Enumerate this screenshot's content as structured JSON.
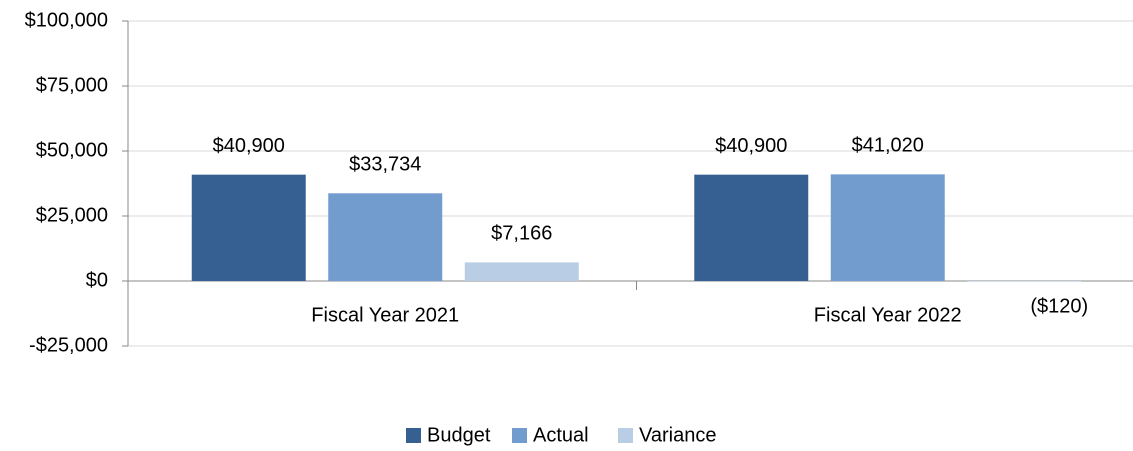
{
  "chart_data": {
    "type": "bar",
    "categories": [
      "Fiscal Year 2021",
      "Fiscal Year 2022"
    ],
    "series": [
      {
        "name": "Budget",
        "color": "#376092",
        "values": [
          40900,
          40900
        ],
        "value_labels": [
          "$40,900",
          "$40,900"
        ]
      },
      {
        "name": "Actual",
        "color": "#739cce",
        "values": [
          33734,
          41020
        ],
        "value_labels": [
          "$33,734",
          "$41,020"
        ]
      },
      {
        "name": "Variance",
        "color": "#b9cde5",
        "values": [
          7166,
          -120
        ],
        "value_labels": [
          "$7,166",
          "($120)"
        ]
      }
    ],
    "ylim": [
      -25000,
      100000
    ],
    "yticks": [
      {
        "value": -25000,
        "label": "-$25,000"
      },
      {
        "value": 0,
        "label": "$0"
      },
      {
        "value": 25000,
        "label": "$25,000"
      },
      {
        "value": 50000,
        "label": "$50,000"
      },
      {
        "value": 75000,
        "label": "$75,000"
      },
      {
        "value": 100000,
        "label": "$100,000"
      }
    ],
    "grid": true,
    "legend": "bottom"
  }
}
